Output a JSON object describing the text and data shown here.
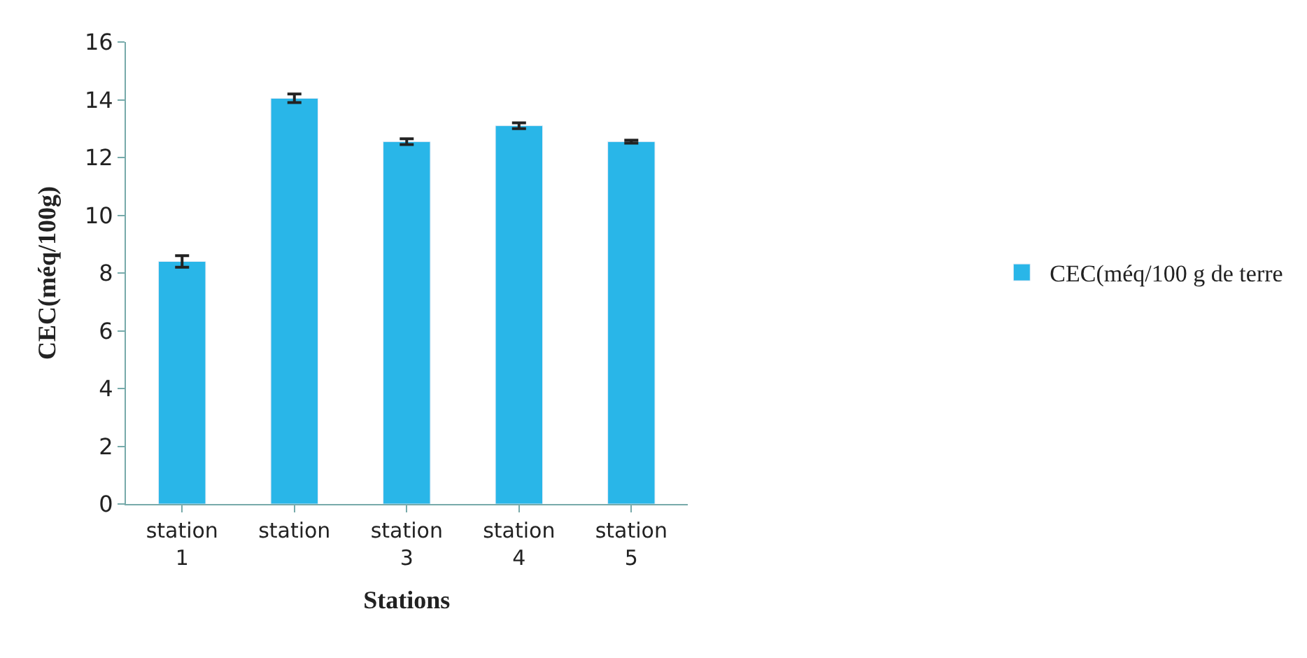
{
  "chart_data": {
    "type": "bar",
    "xlabel": "Stations",
    "ylabel": "CEC(méq/100g)",
    "categories": [
      "station 1",
      "station",
      "station 3",
      "station 4",
      "station 5"
    ],
    "series": [
      {
        "name": "CEC(méq/100 g de terre",
        "color": "#29b6e8",
        "values": [
          8.4,
          14.05,
          12.55,
          13.1,
          12.55
        ],
        "errors": [
          0.2,
          0.15,
          0.1,
          0.1,
          0.05
        ]
      }
    ],
    "ylim": [
      0,
      16
    ],
    "yticks": [
      0,
      2,
      4,
      6,
      8,
      10,
      12,
      14,
      16
    ],
    "legend": "right"
  }
}
